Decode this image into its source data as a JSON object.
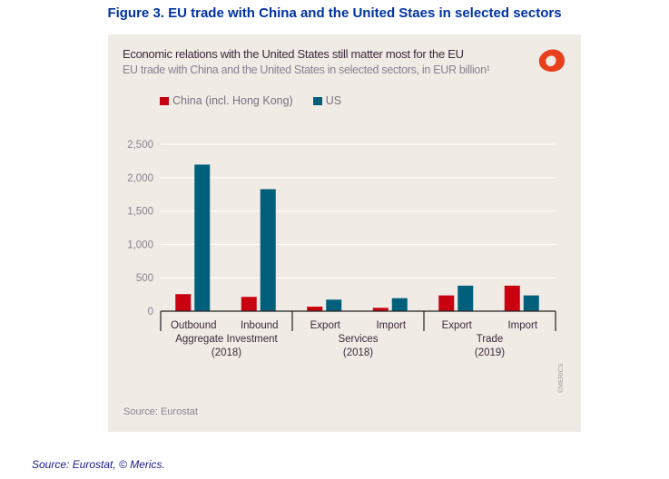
{
  "figure_title": "Figure 3. EU trade with China and the United Staes in selected sectors",
  "footer": "Source: Eurostat, © Merics.",
  "chart_data": {
    "type": "bar",
    "title": "Economic relations with the United States still matter most for the EU",
    "subtitle": "EU trade with China and the United States in selected sectors, in EUR billion¹",
    "categories": [
      "Outbound",
      "Inbound",
      "Export",
      "Import",
      "Export",
      "Import"
    ],
    "groups": [
      {
        "label": "Aggregate Investment",
        "year": "(2018)"
      },
      {
        "label": "Services",
        "year": "(2018)"
      },
      {
        "label": "Trade",
        "year": "(2019)"
      }
    ],
    "series": [
      {
        "name": "China (incl. Hong Kong)",
        "color": "#c8000f",
        "values": [
          255,
          214,
          68,
          50,
          236,
          382
        ]
      },
      {
        "name": "US",
        "color": "#00607c",
        "values": [
          2195,
          1827,
          173,
          195,
          382,
          236
        ]
      }
    ],
    "yticks": [
      "0",
      "500",
      "1,000",
      "1,500",
      "2,000",
      "2,500"
    ],
    "ylim": [
      0,
      2500
    ],
    "grid": true,
    "legend": "top-left",
    "source": "Source: Eurostat",
    "credit": "©MERICS"
  }
}
